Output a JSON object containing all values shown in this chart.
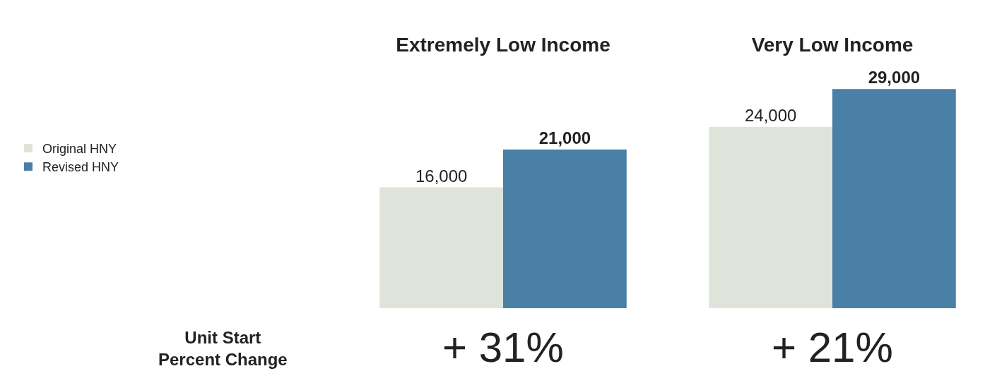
{
  "chart_data": {
    "type": "bar",
    "categories": [
      "Extremely Low Income",
      "Very Low Income"
    ],
    "series": [
      {
        "name": "Original HNY",
        "color": "#dfe4db",
        "values": [
          16000,
          24000
        ],
        "value_labels": [
          "16,000",
          "24,000"
        ]
      },
      {
        "name": "Revised HNY",
        "color": "#4a7fa6",
        "values": [
          21000,
          29000
        ],
        "value_labels": [
          "21,000",
          "29,000"
        ]
      }
    ],
    "legend": "left",
    "annotations": [
      "Unit Start\nPercent Change",
      "+ 31%",
      "+ 21%"
    ]
  }
}
